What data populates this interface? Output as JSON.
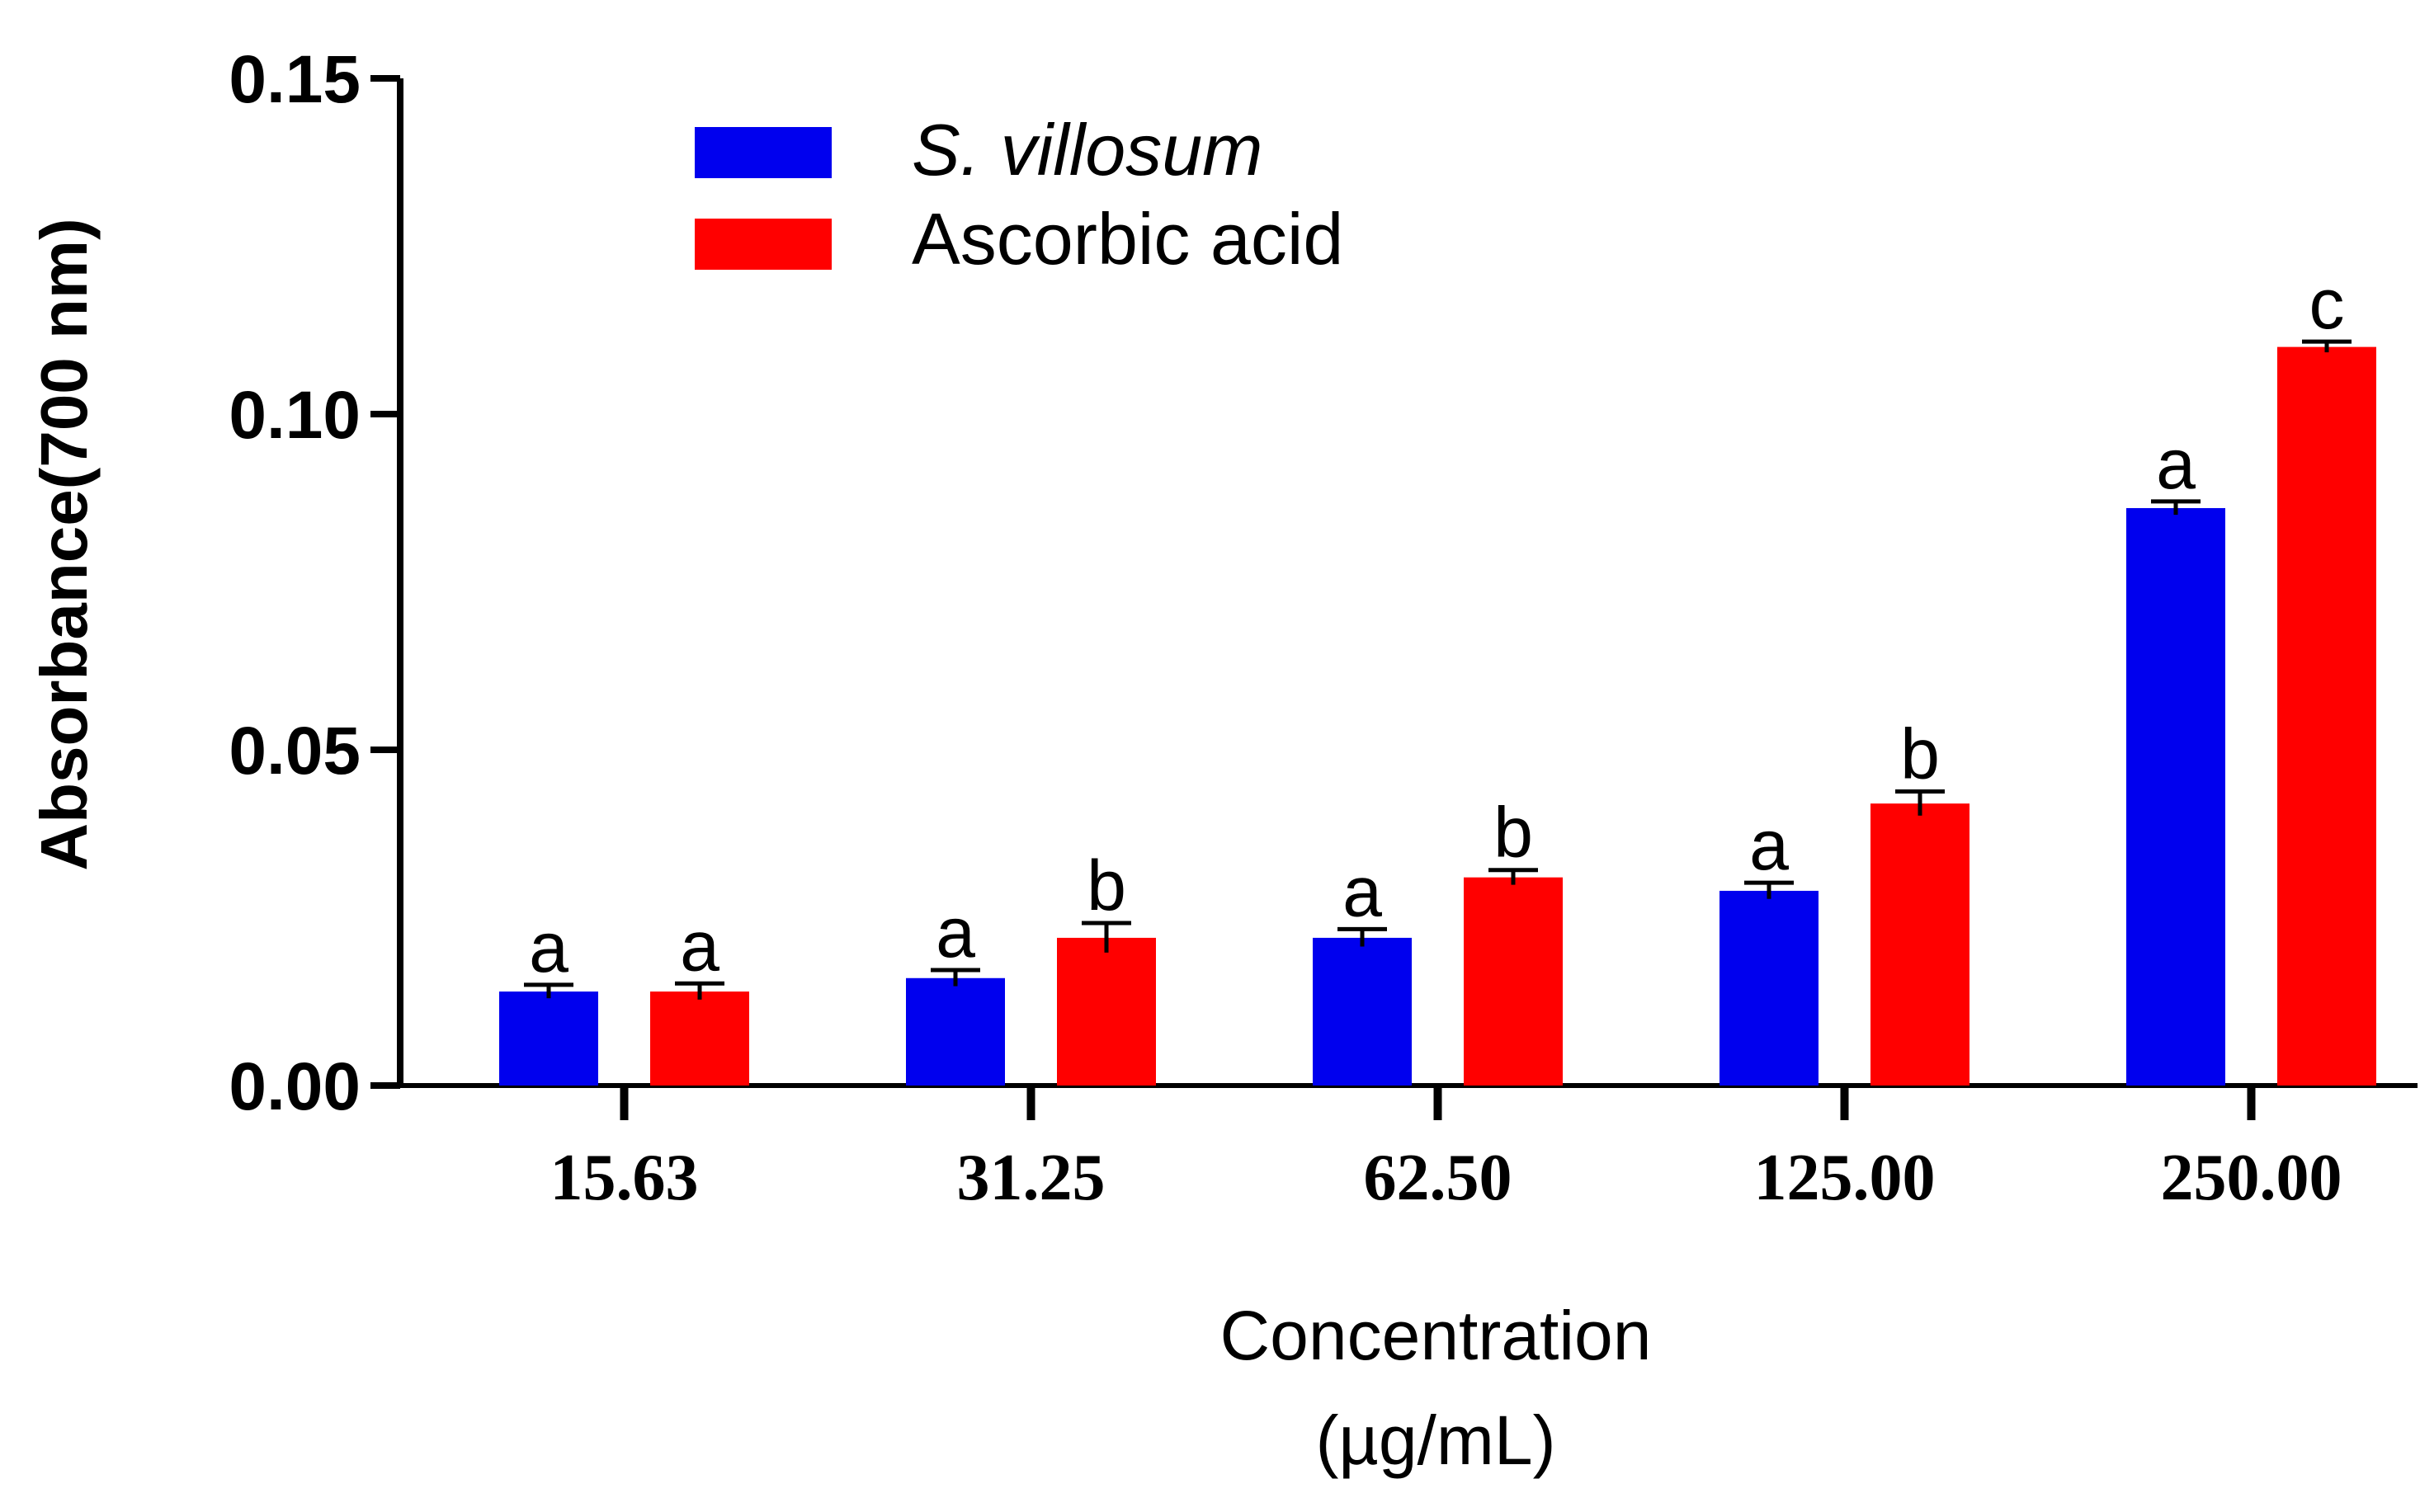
{
  "chart_data": {
    "type": "bar",
    "title": "",
    "xlabel": "Concentration",
    "xlabel_unit": "(µg/mL)",
    "ylabel": "Absorbance(700 nm)",
    "ylim": [
      0,
      0.15
    ],
    "yticks": [
      "0.00",
      "0.05",
      "0.10",
      "0.15"
    ],
    "ytick_values": [
      0,
      0.05,
      0.1,
      0.15
    ],
    "categories": [
      "15.63",
      "31.25",
      "62.50",
      "125.00",
      "250.00"
    ],
    "legend_position": "top-left",
    "series": [
      {
        "name": "S. villosum",
        "color": "#0000ee",
        "values": [
          0.014,
          0.016,
          0.022,
          0.029,
          0.086
        ],
        "errors": [
          0.001,
          0.0012,
          0.0013,
          0.0012,
          0.001
        ],
        "labels": [
          "a",
          "a",
          "a",
          "a",
          "a"
        ]
      },
      {
        "name": "Ascorbic acid",
        "color": "#ff0000",
        "values": [
          0.014,
          0.022,
          0.031,
          0.042,
          0.11
        ],
        "errors": [
          0.0012,
          0.0022,
          0.0011,
          0.0018,
          0.0008
        ],
        "labels": [
          "a",
          "b",
          "b",
          "b",
          "c"
        ]
      }
    ]
  }
}
